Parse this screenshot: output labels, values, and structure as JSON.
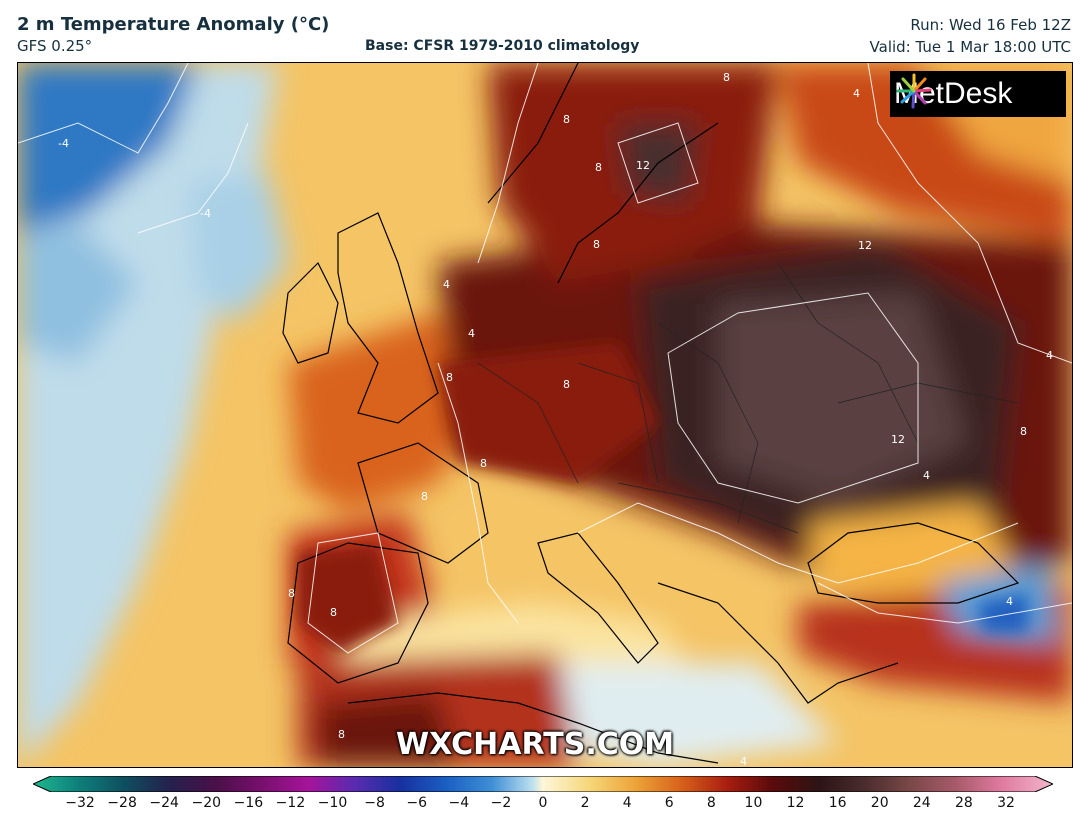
{
  "header": {
    "title": "2 m Temperature Anomaly (°C)",
    "model": "GFS 0.25°",
    "base": "Base: CFSR 1979-2010 climatology",
    "run": "Run: Wed 16 Feb 12Z",
    "valid": "Valid: Tue 1 Mar 18:00 UTC"
  },
  "logo": {
    "text": "MetDesk",
    "icon": "metdesk-burst-icon"
  },
  "watermark": "WXCHARTS.COM",
  "colorbar": {
    "ticks": [
      "−32",
      "−28",
      "−24",
      "−20",
      "−16",
      "−12",
      "−10",
      "−8",
      "−6",
      "−4",
      "−2",
      "0",
      "2",
      "4",
      "6",
      "8",
      "10",
      "12",
      "16",
      "20",
      "24",
      "28",
      "32"
    ],
    "colors": [
      "#1fb88f",
      "#0e7f7a",
      "#0f4e5f",
      "#25204d",
      "#4a1048",
      "#7a0f6e",
      "#a5149a",
      "#5a2bb0",
      "#1830a0",
      "#1a5fc2",
      "#3f8fd6",
      "#9bc6e6",
      "#fdf6d8",
      "#f6d77a",
      "#eda43a",
      "#d8621c",
      "#a81e10",
      "#5a0b0b",
      "#2d1414",
      "#4a2c2c",
      "#7a4848",
      "#a85a6a",
      "#e07ba0"
    ]
  },
  "contour_labels": [
    "-4",
    "-4",
    "4",
    "4",
    "4",
    "8",
    "8",
    "8",
    "8",
    "8",
    "8",
    "8",
    "8",
    "8",
    "8",
    "12",
    "12",
    "12",
    "4",
    "4",
    "4",
    "4",
    "8",
    "8"
  ],
  "colors": {
    "neg_strong": "#1a63b8",
    "neg_weak": "#bcd9ea",
    "neutral": "#fdf3c8",
    "warm": "#f5b24a",
    "hot": "#c9361a",
    "very_hot": "#5a0d0d",
    "extreme": "#4a3232"
  }
}
